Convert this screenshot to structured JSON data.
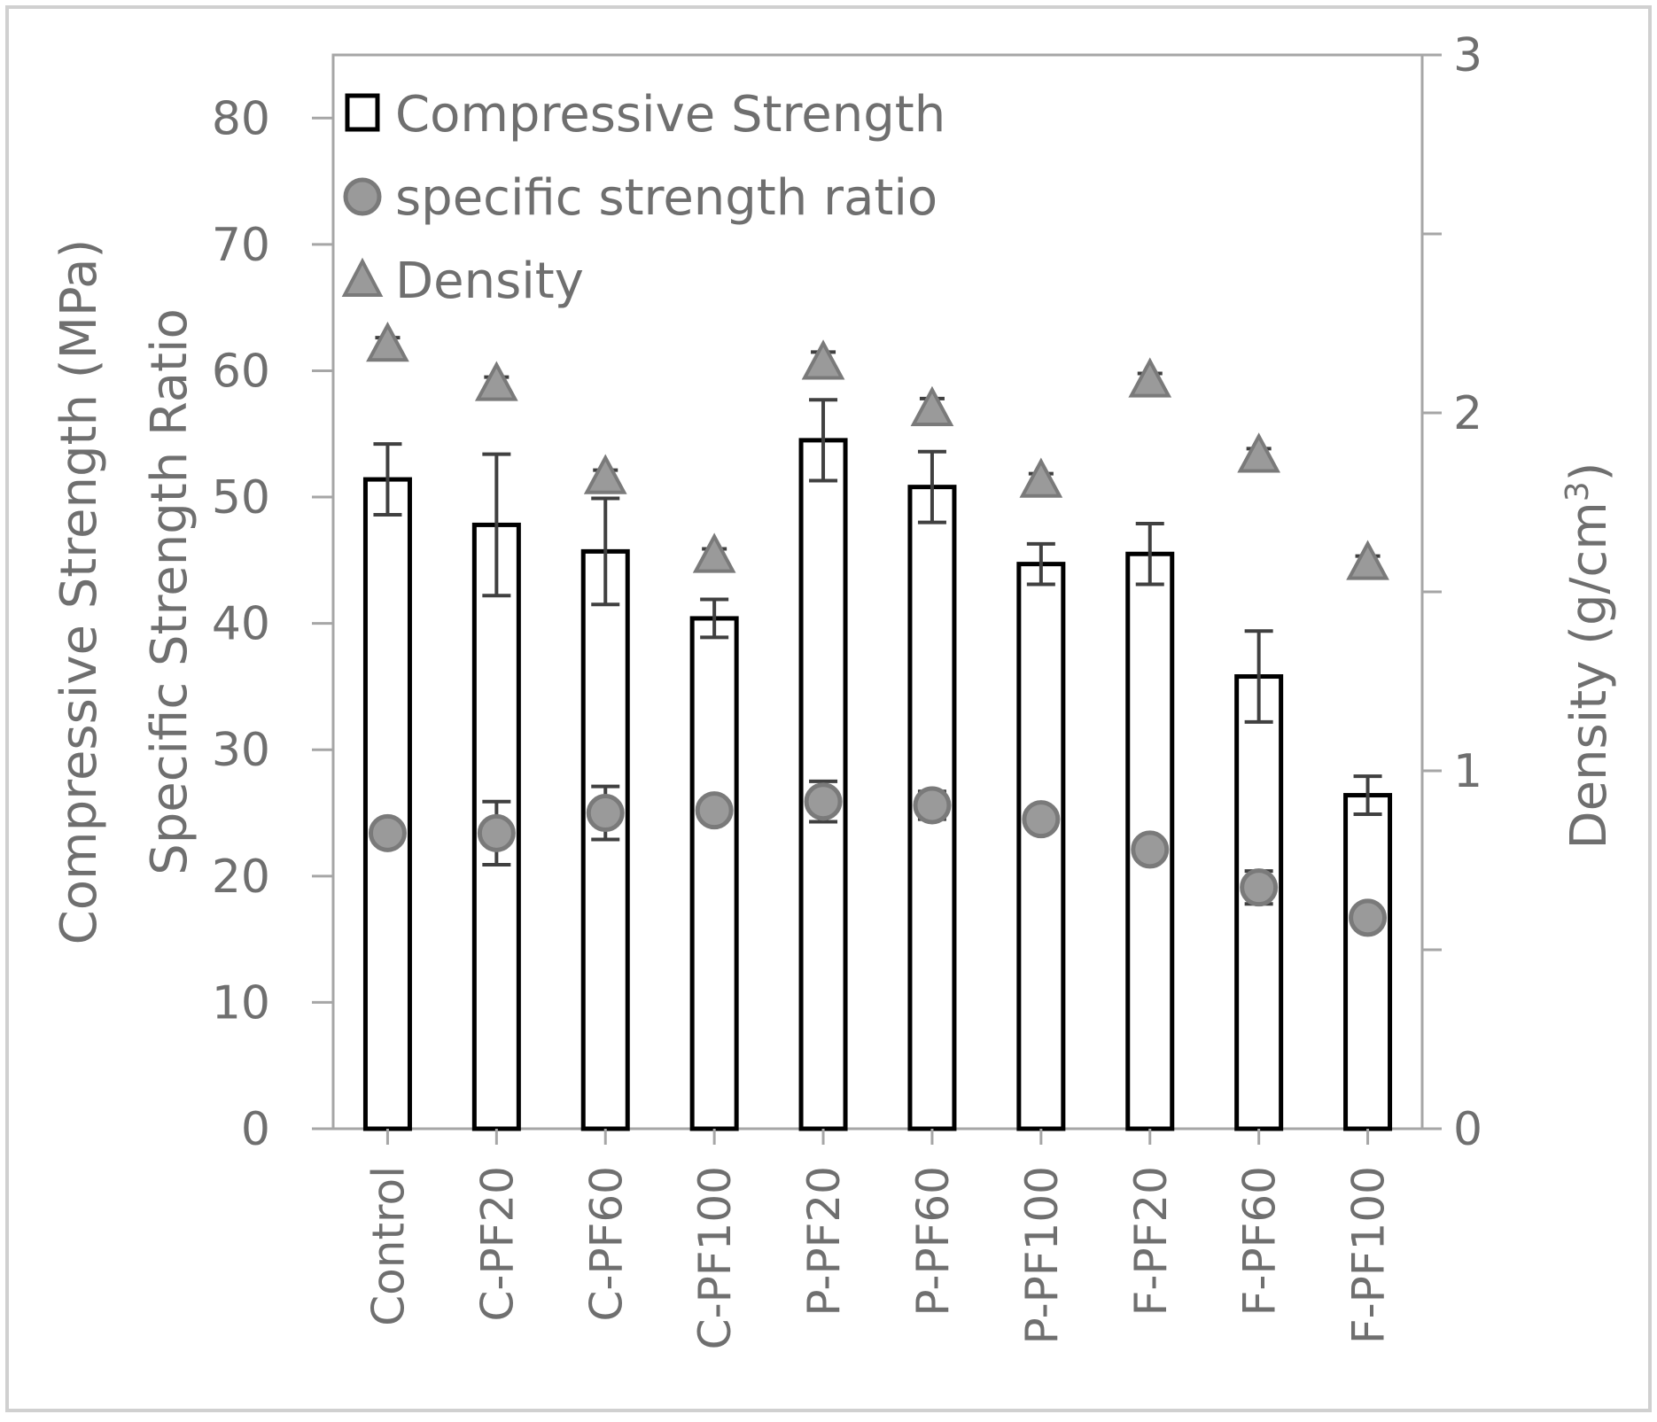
{
  "chart_data": {
    "type": "bar",
    "categories": [
      "Control",
      "C-PF20",
      "C-PF60",
      "C-PF100",
      "P-PF20",
      "P-PF60",
      "P-PF100",
      "F-PF20",
      "F-PF60",
      "F-PF100"
    ],
    "series": [
      {
        "name": "Compressive Strength",
        "kind": "bar",
        "axis": "left",
        "values": [
          51.4,
          47.8,
          45.7,
          40.4,
          54.5,
          50.8,
          44.7,
          45.5,
          35.8,
          26.4
        ],
        "error": [
          2.8,
          5.6,
          4.2,
          1.5,
          3.2,
          2.8,
          1.6,
          2.4,
          3.6,
          1.5
        ]
      },
      {
        "name": "specific strength ratio",
        "kind": "marker-circle",
        "axis": "left",
        "values": [
          23.4,
          23.4,
          25.0,
          25.2,
          25.9,
          25.6,
          24.5,
          22.1,
          19.1,
          16.7
        ],
        "error": [
          0.8,
          2.5,
          2.1,
          0.5,
          1.6,
          1.1,
          0.6,
          0.6,
          1.3,
          0.3
        ]
      },
      {
        "name": "Density",
        "kind": "marker-triangle",
        "axis": "right",
        "values": [
          2.19,
          2.08,
          1.82,
          1.6,
          2.14,
          2.01,
          1.81,
          2.09,
          1.88,
          1.58
        ],
        "error": [
          0.02,
          0.02,
          0.02,
          0.02,
          0.03,
          0.03,
          0.02,
          0.02,
          0.02,
          0.02
        ]
      }
    ],
    "ylabel_lines": [
      "Compressive Strength (MPa)",
      "Specific Strength Ratio"
    ],
    "ylim": [
      0,
      85
    ],
    "yticks": [
      "0",
      "10",
      "20",
      "30",
      "40",
      "50",
      "60",
      "70",
      "80"
    ],
    "y2label_main": "Density (g/cm",
    "y2label_sup": "3",
    "y2label_close": ")",
    "y2lim": [
      0,
      3
    ],
    "y2ticks": [
      "0",
      "1",
      "2",
      "3"
    ],
    "legend_position": "top-left",
    "colors": {
      "bar_fill": "#ffffff",
      "bar_stroke": "#000000",
      "error_bar": "#404040",
      "marker_fill": "#9a9a9a",
      "marker_stroke": "#7a7a7a",
      "axis": "#a6a6a6",
      "text": "#6f6f6f",
      "border": "#d0d0d0"
    }
  }
}
